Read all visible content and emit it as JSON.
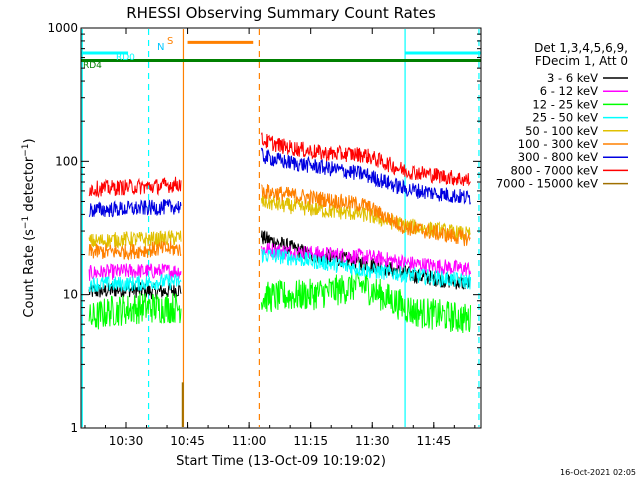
{
  "chart_data": {
    "type": "line",
    "title": "RHESSI Observing Summary Count Rates",
    "xlabel": "Start Time (13-Oct-09 10:19:02)",
    "ylabel": "Count Rate (s⁻¹ detector⁻¹)",
    "ylabel_main": "Count Rate (s",
    "ylabel_exp1": "−1",
    "ylabel_mid": " detector",
    "ylabel_exp2": "−1",
    "ylabel_end": ")",
    "y_scale": "log",
    "ylim": [
      1,
      1000
    ],
    "xlim": [
      "10:19:02",
      "11:56:30"
    ],
    "y_ticks": [
      {
        "value": 1,
        "label": "1"
      },
      {
        "value": 10,
        "label": "10"
      },
      {
        "value": 100,
        "label": "100"
      },
      {
        "value": 1000,
        "label": "1000"
      }
    ],
    "x_ticks": [
      {
        "time": "10:30",
        "label": "10:30"
      },
      {
        "time": "10:45",
        "label": "10:45"
      },
      {
        "time": "11:00",
        "label": "11:00"
      },
      {
        "time": "11:15",
        "label": "11:15"
      },
      {
        "time": "11:30",
        "label": "11:30"
      },
      {
        "time": "11:45",
        "label": "11:45"
      }
    ],
    "legend_header": [
      "Det 1,3,4,5,6,9,",
      "FDecim 1, Att 0"
    ],
    "legend_position": "right",
    "series": [
      {
        "name": "3 - 6 keV",
        "color": "#000000",
        "segments": [
          {
            "t": [
              "10:21:00",
              "10:30:00",
              "10:38:00",
              "10:43:30"
            ],
            "y": [
              10.5,
              11,
              10.5,
              11
            ]
          },
          {
            "t": [
              "11:03:00",
              "11:06:00",
              "11:15:00",
              "11:25:00",
              "11:33:00",
              "11:40:00",
              "11:54:00"
            ],
            "y": [
              27,
              25,
              20,
              18,
              16,
              14,
              12
            ]
          }
        ]
      },
      {
        "name": "6 - 12 keV",
        "color": "#ff00ff",
        "segments": [
          {
            "t": [
              "10:21:00",
              "10:30:00",
              "10:38:00",
              "10:43:30"
            ],
            "y": [
              14.5,
              15,
              15,
              15
            ]
          },
          {
            "t": [
              "11:03:00",
              "11:10:00",
              "11:20:00",
              "11:30:00",
              "11:40:00",
              "11:54:00"
            ],
            "y": [
              22,
              21,
              20,
              19,
              17,
              15.5
            ]
          }
        ]
      },
      {
        "name": "12 - 25 keV",
        "color": "#00ff00",
        "segments": [
          {
            "t": [
              "10:21:00",
              "10:26:00",
              "10:34:00",
              "10:43:30"
            ],
            "y": [
              6.5,
              7.5,
              8,
              8
            ]
          },
          {
            "t": [
              "11:03:00",
              "11:15:00",
              "11:23:00",
              "11:27:00",
              "11:32:00",
              "11:40:00",
              "11:54:00"
            ],
            "y": [
              9.5,
              10,
              11,
              12,
              10,
              7.5,
              6.5
            ]
          }
        ]
      },
      {
        "name": "25 - 50 keV",
        "color": "#00ffff",
        "segments": [
          {
            "t": [
              "10:21:00",
              "10:30:00",
              "10:38:00",
              "10:43:30"
            ],
            "y": [
              12,
              12,
              12.5,
              12.5
            ]
          },
          {
            "t": [
              "11:03:00",
              "11:10:00",
              "11:20:00",
              "11:30:00",
              "11:40:00",
              "11:54:00"
            ],
            "y": [
              20,
              19,
              17,
              15,
              14,
              12.5
            ]
          }
        ]
      },
      {
        "name": "50 - 100 keV",
        "color": "#e0c000",
        "segments": [
          {
            "t": [
              "10:21:00",
              "10:30:00",
              "10:38:00",
              "10:43:30"
            ],
            "y": [
              25,
              26,
              26,
              27
            ]
          },
          {
            "t": [
              "11:03:00",
              "11:08:00",
              "11:18:00",
              "11:28:00",
              "11:38:00",
              "11:54:00"
            ],
            "y": [
              50,
              47,
              43,
              40,
              33,
              28
            ]
          }
        ]
      },
      {
        "name": "100 - 300 keV",
        "color": "#ff8000",
        "segments": [
          {
            "t": [
              "10:21:00",
              "10:30:00",
              "10:38:00",
              "10:43:30"
            ],
            "y": [
              21,
              21,
              22,
              22
            ]
          },
          {
            "t": [
              "11:03:00",
              "11:08:00",
              "11:18:00",
              "11:28:00",
              "11:38:00",
              "11:54:00"
            ],
            "y": [
              60,
              57,
              52,
              47,
              32,
              26
            ]
          }
        ]
      },
      {
        "name": "300 - 800 keV",
        "color": "#0000e0",
        "segments": [
          {
            "t": [
              "10:21:00",
              "10:30:00",
              "10:38:00",
              "10:43:30"
            ],
            "y": [
              43,
              44,
              45,
              46
            ]
          },
          {
            "t": [
              "11:03:00",
              "11:08:00",
              "11:18:00",
              "11:28:00",
              "11:38:00",
              "11:54:00"
            ],
            "y": [
              110,
              100,
              90,
              80,
              62,
              53
            ]
          }
        ]
      },
      {
        "name": "800 - 7000 keV",
        "color": "#ff0000",
        "segments": [
          {
            "t": [
              "10:21:00",
              "10:30:00",
              "10:38:00",
              "10:43:30"
            ],
            "y": [
              62,
              64,
              65,
              68
            ]
          },
          {
            "t": [
              "11:03:00",
              "11:08:00",
              "11:18:00",
              "11:28:00",
              "11:38:00",
              "11:54:00"
            ],
            "y": [
              145,
              130,
              115,
              112,
              85,
              72
            ]
          }
        ]
      },
      {
        "name": "7000 - 15000 keV",
        "color": "#a07000",
        "segments": []
      }
    ],
    "annotations": [
      {
        "label": "RD0",
        "color": "#00ffff"
      },
      {
        "label": "RD4",
        "color": "#008000"
      },
      {
        "label": "N",
        "color": "#00c8ff"
      },
      {
        "label": "S",
        "color": "#ff8000"
      }
    ],
    "attenuator_bars": [
      {
        "label": "RD0",
        "color": "#00ffff",
        "from": "10:19:02",
        "to": "10:30:30",
        "y": 650
      },
      {
        "label": "RD0",
        "color": "#00ffff",
        "from": "11:38:00",
        "to": "11:56:30",
        "y": 650
      },
      {
        "label": "RD4",
        "color": "#008000",
        "from": "10:19:02",
        "to": "11:56:30",
        "y": 570
      },
      {
        "label": "S",
        "color": "#ff8000",
        "from": "10:45:00",
        "to": "11:01:00",
        "y": 780
      }
    ],
    "vlines": [
      {
        "time": "10:19:20",
        "color": "#00ffff",
        "style": "solid"
      },
      {
        "time": "10:35:30",
        "color": "#00ffff",
        "style": "dashed"
      },
      {
        "time": "10:44:00",
        "color": "#ff8000",
        "style": "solid"
      },
      {
        "time": "11:02:30",
        "color": "#ff8000",
        "style": "dashed"
      },
      {
        "time": "11:38:00",
        "color": "#00ffff",
        "style": "solid"
      },
      {
        "time": "11:56:00",
        "color": "#00ffff",
        "style": "dashed"
      }
    ],
    "grid": false
  },
  "timestamp": "16-Oct-2021 02:05"
}
